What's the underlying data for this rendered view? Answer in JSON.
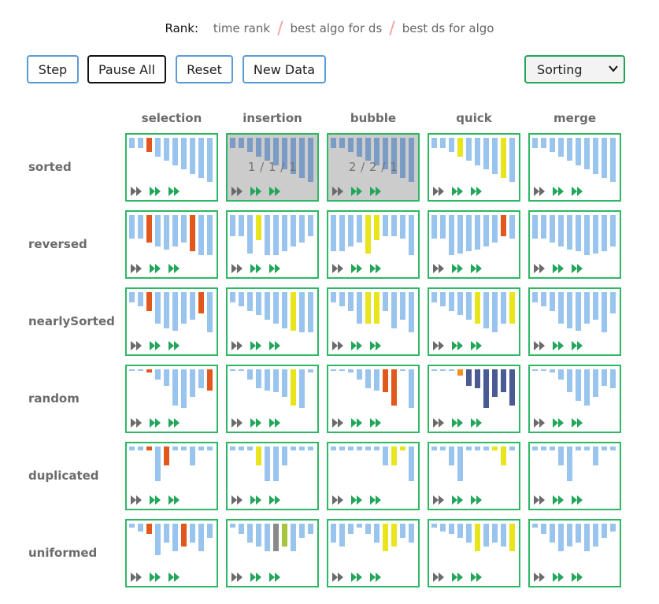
{
  "rank": {
    "label": "Rank:",
    "options": [
      "time rank",
      "best algo for ds",
      "best ds for algo"
    ],
    "separator": "/"
  },
  "toolbar": {
    "step": "Step",
    "pause_all": "Pause All",
    "reset": "Reset",
    "new_data": "New Data",
    "mode_select": {
      "value": "Sorting",
      "options": [
        "Sorting"
      ]
    }
  },
  "colors": {
    "bar": "#99c4ee",
    "bar_done": "#7a9bc4",
    "compare": "#e1571c",
    "swap": "#e9e51c",
    "pivot": "#f39223",
    "partition": "#4a5a92",
    "olive": "#a6c53c",
    "gray": "#8a8a8a",
    "cell_border": "#2eb864",
    "ctrl_gray": "#6b6b6b",
    "ctrl_green": "#22a65a"
  },
  "algorithms": [
    "selection",
    "insertion",
    "bubble",
    "quick",
    "merge"
  ],
  "datasets": [
    "sorted",
    "reversed",
    "nearlySorted",
    "random",
    "duplicated",
    "uniformed"
  ],
  "cells": [
    [
      {
        "bars": [
          13,
          13,
          18,
          24,
          29,
          35,
          40,
          46,
          51,
          56
        ],
        "hl": {
          "2": "compare"
        }
      },
      {
        "bars": [
          13,
          13,
          18,
          24,
          29,
          35,
          40,
          46,
          51,
          56
        ],
        "hl": {},
        "done": true,
        "rank": "1 / 1 / 1"
      },
      {
        "bars": [
          13,
          13,
          18,
          24,
          29,
          35,
          40,
          46,
          51,
          56
        ],
        "hl": {},
        "done": true,
        "rank": "2 / 2 / 1"
      },
      {
        "bars": [
          13,
          13,
          18,
          24,
          29,
          35,
          40,
          46,
          51,
          56
        ],
        "hl": {
          "3": "swap",
          "8": "swap"
        }
      },
      {
        "bars": [
          13,
          13,
          18,
          24,
          29,
          35,
          40,
          46,
          51,
          56
        ],
        "hl": {}
      }
    ],
    [
      {
        "bars": [
          30,
          30,
          35,
          40,
          44,
          40,
          35,
          46,
          51,
          51
        ],
        "hl": {
          "2": "compare",
          "7": "compare"
        }
      },
      {
        "bars": [
          27,
          27,
          49,
          32,
          51,
          51,
          46,
          40,
          35,
          27
        ],
        "hl": {
          "3": "swap"
        }
      },
      {
        "bars": [
          46,
          46,
          40,
          35,
          49,
          32,
          27,
          27,
          30,
          51
        ],
        "hl": {
          "4": "swap",
          "5": "swap"
        }
      },
      {
        "bars": [
          30,
          30,
          51,
          49,
          46,
          44,
          40,
          35,
          27,
          30
        ],
        "hl": {
          "8": "compare"
        }
      },
      {
        "bars": [
          30,
          30,
          35,
          40,
          44,
          46,
          51,
          49,
          46,
          40
        ],
        "hl": {}
      }
    ],
    [
      {
        "bars": [
          13,
          18,
          24,
          40,
          46,
          49,
          40,
          35,
          27,
          51
        ],
        "hl": {
          "2": "compare",
          "8": "compare"
        }
      },
      {
        "bars": [
          13,
          18,
          24,
          29,
          35,
          40,
          46,
          49,
          51,
          51
        ],
        "hl": {
          "7": "swap"
        }
      },
      {
        "bars": [
          13,
          18,
          24,
          40,
          40,
          40,
          24,
          46,
          35,
          51
        ],
        "hl": {
          "4": "swap",
          "5": "swap"
        }
      },
      {
        "bars": [
          13,
          18,
          24,
          29,
          35,
          40,
          46,
          51,
          40,
          40
        ],
        "hl": {
          "5": "swap",
          "9": "swap"
        }
      },
      {
        "bars": [
          13,
          18,
          24,
          40,
          46,
          49,
          40,
          35,
          51,
          27
        ],
        "hl": {}
      }
    ],
    [
      {
        "bars": [
          2,
          2,
          4,
          13,
          21,
          46,
          49,
          35,
          24,
          27
        ],
        "hl": {
          "2": "compare",
          "9": "compare"
        }
      },
      {
        "bars": [
          2,
          2,
          13,
          24,
          27,
          29,
          35,
          46,
          49,
          4
        ],
        "hl": {
          "7": "swap"
        }
      },
      {
        "bars": [
          2,
          2,
          4,
          13,
          24,
          27,
          29,
          46,
          2,
          49
        ],
        "hl": {
          "6": "compare",
          "7": "compare"
        }
      },
      {
        "bars": [
          2,
          2,
          2,
          8,
          21,
          24,
          49,
          35,
          29,
          46
        ],
        "hl": {
          "3": "pivot",
          "4": "partition",
          "5": "partition",
          "6": "partition",
          "7": "partition",
          "8": "partition",
          "9": "partition"
        }
      },
      {
        "bars": [
          2,
          2,
          4,
          13,
          29,
          40,
          46,
          35,
          21,
          24
        ],
        "hl": {}
      }
    ],
    [
      {
        "bars": [
          5,
          5,
          5,
          44,
          24,
          5,
          5,
          24,
          5,
          5
        ],
        "hl": {
          "2": "compare",
          "4": "compare"
        }
      },
      {
        "bars": [
          5,
          5,
          5,
          24,
          44,
          44,
          24,
          5,
          5,
          5
        ],
        "hl": {
          "3": "swap"
        }
      },
      {
        "bars": [
          5,
          5,
          5,
          5,
          5,
          5,
          24,
          24,
          5,
          44
        ],
        "hl": {
          "7": "swap",
          "8": "swap"
        }
      },
      {
        "bars": [
          5,
          5,
          24,
          44,
          5,
          5,
          5,
          5,
          24,
          5
        ],
        "hl": {
          "7": "swap",
          "8": "swap"
        }
      },
      {
        "bars": [
          5,
          5,
          5,
          24,
          44,
          5,
          5,
          24,
          5,
          5
        ],
        "hl": {}
      }
    ],
    [
      {
        "bars": [
          5,
          10,
          13,
          40,
          24,
          35,
          29,
          24,
          35,
          18
        ],
        "hl": {
          "2": "compare",
          "6": "compare"
        }
      },
      {
        "bars": [
          5,
          13,
          24,
          29,
          35,
          35,
          29,
          35,
          18,
          13
        ],
        "hl": {
          "5": "gray",
          "6": "olive"
        }
      },
      {
        "bars": [
          24,
          29,
          13,
          5,
          13,
          24,
          35,
          29,
          18,
          24
        ],
        "hl": {
          "6": "swap",
          "7": "swap"
        }
      },
      {
        "bars": [
          5,
          10,
          13,
          18,
          24,
          35,
          29,
          24,
          29,
          35
        ],
        "hl": {
          "5": "swap",
          "9": "swap"
        }
      },
      {
        "bars": [
          5,
          13,
          24,
          35,
          29,
          24,
          35,
          29,
          18,
          10
        ],
        "hl": {}
      }
    ]
  ]
}
